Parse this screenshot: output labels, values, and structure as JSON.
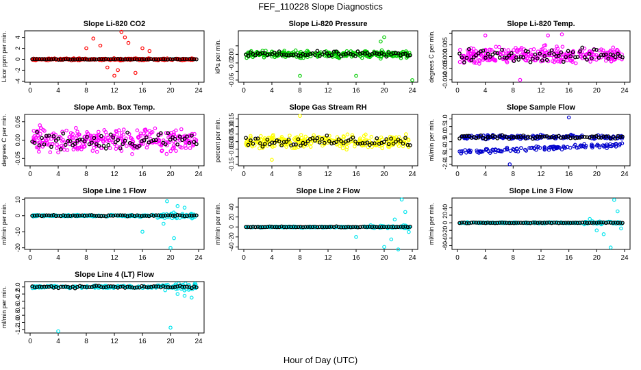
{
  "title": "FEF_110228  Slope Diagnostics",
  "xlabel": "Hour of Day (UTC)",
  "chart_data": [
    {
      "type": "scatter",
      "title": "Slope Li-820 CO2",
      "ylabel": "Licor ppm per min.",
      "xlim": [
        0,
        24
      ],
      "ylim": [
        -4.2,
        5.2
      ],
      "xticks": [
        0,
        4,
        8,
        12,
        16,
        20,
        24
      ],
      "yticks": [
        -4,
        -2,
        0,
        2,
        4
      ],
      "ytick_labels": [
        "-4",
        "-2",
        "0",
        "2",
        "4"
      ],
      "color": "#ff0000",
      "center": 0,
      "spread": 0.25,
      "outliers": [
        [
          8,
          2
        ],
        [
          9,
          3.8
        ],
        [
          10,
          2.5
        ],
        [
          11,
          -1.5
        ],
        [
          12,
          -3
        ],
        [
          12.5,
          -2
        ],
        [
          13,
          5
        ],
        [
          13.5,
          4
        ],
        [
          14,
          3
        ],
        [
          15,
          -2.5
        ],
        [
          16,
          2
        ],
        [
          17,
          1.5
        ]
      ]
    },
    {
      "type": "scatter",
      "title": "Slope Li-820 Pressure",
      "ylabel": "kPa per min.",
      "xlim": [
        0,
        24
      ],
      "ylim": [
        -0.065,
        0.055
      ],
      "xticks": [
        0,
        4,
        8,
        12,
        16,
        20,
        24
      ],
      "yticks": [
        -0.06,
        -0.04,
        -0.02,
        0,
        0.02
      ],
      "ytick_labels": [
        "-0.06",
        "",
        "-0.02",
        "0.00",
        ""
      ],
      "color": "#00cc00",
      "center": 0.0,
      "spread": 0.012,
      "outliers": [
        [
          8,
          -0.05
        ],
        [
          16,
          -0.05
        ],
        [
          20,
          0.04
        ],
        [
          24,
          -0.06
        ],
        [
          19.5,
          0.03
        ]
      ]
    },
    {
      "type": "scatter",
      "title": "Slope Li-820 Temp.",
      "ylabel": "degrees C per min.",
      "xlim": [
        0,
        24
      ],
      "ylim": [
        -0.011,
        0.011
      ],
      "xticks": [
        0,
        4,
        8,
        12,
        16,
        20,
        24
      ],
      "yticks": [
        -0.01,
        -0.005,
        0,
        0.005,
        0.01
      ],
      "ytick_labels": [
        "-0.010",
        "-0.005",
        "0.000",
        "0.005",
        ""
      ],
      "color": "#ff00ff",
      "center": 0.0005,
      "spread": 0.005,
      "outliers": [
        [
          9,
          -0.01
        ],
        [
          13,
          0.009
        ],
        [
          15,
          0.0095
        ],
        [
          4,
          0.009
        ]
      ]
    },
    {
      "type": "scatter",
      "title": "Slope Amb. Box Temp.",
      "ylabel": "degrees C per min.",
      "xlim": [
        0,
        24
      ],
      "ylim": [
        -0.07,
        0.07
      ],
      "xticks": [
        0,
        4,
        8,
        12,
        16,
        20,
        24
      ],
      "yticks": [
        -0.05,
        0,
        0.05
      ],
      "ytick_labels": [
        "-0.05",
        "0.00",
        "0.05"
      ],
      "color": "#ff00ff",
      "center": 0.0,
      "spread": 0.045,
      "outliers": []
    },
    {
      "type": "scatter",
      "title": "Slope Gas Stream RH",
      "ylabel": "percent per min.",
      "xlim": [
        0,
        24
      ],
      "ylim": [
        -0.16,
        0.18
      ],
      "xticks": [
        0,
        4,
        8,
        12,
        16,
        20,
        24
      ],
      "yticks": [
        -0.15,
        -0.1,
        -0.05,
        0,
        0.05,
        0.1,
        0.15
      ],
      "ytick_labels": [
        "-0.15",
        "",
        "-0.05",
        "0.00",
        "0.05",
        "0.10",
        "0.15"
      ],
      "color": "#ffff00",
      "center": 0.0,
      "spread": 0.06,
      "outliers": [
        [
          8,
          0.17
        ],
        [
          4,
          -0.12
        ]
      ]
    },
    {
      "type": "scatter",
      "title": "Slope Sample Flow",
      "ylabel": "ml/min per min.",
      "xlim": [
        0,
        24
      ],
      "ylim": [
        -2.1,
        1.3
      ],
      "xticks": [
        0,
        4,
        8,
        12,
        16,
        20,
        24
      ],
      "yticks": [
        -2,
        -1.5,
        -1,
        -0.5,
        0,
        0.5,
        1
      ],
      "ytick_labels": [
        "-2.0",
        "-1.5",
        "-1.0",
        "-0.5",
        "0.0",
        "0.5",
        "1.0"
      ],
      "color": "#0000cc",
      "center": -0.2,
      "spread": 0.2,
      "band2": -1.2,
      "outliers": [
        [
          16,
          1.1
        ],
        [
          7.5,
          -2.0
        ]
      ]
    },
    {
      "type": "scatter",
      "title": "Slope Line 1 Flow",
      "ylabel": "ml/min per min.",
      "xlim": [
        0,
        24
      ],
      "ylim": [
        -21,
        11
      ],
      "xticks": [
        0,
        4,
        8,
        12,
        16,
        20,
        24
      ],
      "yticks": [
        -20,
        -10,
        0,
        10
      ],
      "ytick_labels": [
        "-20",
        "-10",
        "0",
        "10"
      ],
      "color": "#00e5ee",
      "center": 0.0,
      "spread": 0.8,
      "outliers": [
        [
          16,
          -10
        ],
        [
          19,
          -5
        ],
        [
          19.5,
          9
        ],
        [
          20,
          -20
        ],
        [
          20.5,
          -14
        ],
        [
          21,
          6
        ],
        [
          22,
          5
        ]
      ]
    },
    {
      "type": "scatter",
      "title": "Slope Line 2 Flow",
      "ylabel": "ml/min per min.",
      "xlim": [
        0,
        24
      ],
      "ylim": [
        -45,
        58
      ],
      "xticks": [
        0,
        4,
        8,
        12,
        16,
        20,
        24
      ],
      "yticks": [
        -40,
        -20,
        0,
        20,
        40
      ],
      "ytick_labels": [
        "-40",
        "-20",
        "0",
        "20",
        "40"
      ],
      "color": "#00e5ee",
      "center": 0.0,
      "spread": 1.5,
      "outliers": [
        [
          16,
          -20
        ],
        [
          20,
          -40
        ],
        [
          21,
          -25
        ],
        [
          22,
          -45
        ],
        [
          22.5,
          55
        ],
        [
          23,
          30
        ],
        [
          23.5,
          -10
        ],
        [
          21.5,
          15
        ]
      ]
    },
    {
      "type": "scatter",
      "title": "Slope Line 3 Flow",
      "ylabel": "ml/min per min.",
      "xlim": [
        0,
        24
      ],
      "ylim": [
        -70,
        65
      ],
      "xticks": [
        0,
        4,
        8,
        12,
        16,
        20,
        24
      ],
      "yticks": [
        -60,
        -40,
        -20,
        0,
        20,
        40
      ],
      "ytick_labels": [
        "-60",
        "-40",
        "-20",
        "0",
        "20",
        "40"
      ],
      "color": "#00e5ee",
      "center": 0.0,
      "spread": 2,
      "outliers": [
        [
          20,
          -20
        ],
        [
          21,
          -30
        ],
        [
          22,
          -65
        ],
        [
          22.5,
          60
        ],
        [
          23,
          30
        ],
        [
          23.5,
          -15
        ],
        [
          19,
          10
        ]
      ]
    },
    {
      "type": "scatter",
      "title": "Slope Line 4 (LT) Flow",
      "ylabel": "ml/min per min.",
      "xlim": [
        0,
        24
      ],
      "ylim": [
        -1.3,
        0.15
      ],
      "xticks": [
        0,
        4,
        8,
        12,
        16,
        20,
        24
      ],
      "yticks": [
        -1.2,
        -1,
        -0.8,
        -0.6,
        -0.4,
        -0.2,
        0
      ],
      "ytick_labels": [
        "-1.2",
        "-1.0",
        "-0.8",
        "-0.6",
        "-0.4",
        "-0.2",
        "0.0"
      ],
      "color": "#00e5ee",
      "center": 0.0,
      "spread": 0.05,
      "outliers": [
        [
          4,
          -1.25
        ],
        [
          20,
          -1.15
        ],
        [
          21,
          -0.2
        ],
        [
          22,
          -0.25
        ],
        [
          23,
          -0.3
        ]
      ]
    }
  ]
}
